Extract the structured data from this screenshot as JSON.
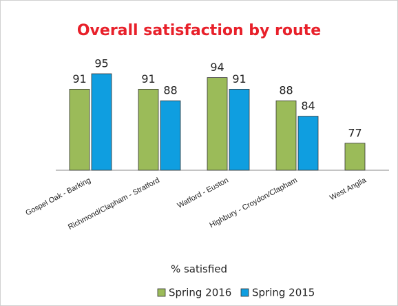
{
  "chart_data": {
    "type": "bar",
    "title": "Overall satisfaction by route",
    "x_label": "% satisfied",
    "categories": [
      "Gospel Oak - Barking",
      "Richmond/Clapham - Stratford",
      "Watford - Euston",
      "Highbury - Croydon/Clapham",
      "West Anglia"
    ],
    "series": [
      {
        "name": "Spring 2016",
        "color": "#9bbb59",
        "values": [
          91,
          91,
          94,
          88,
          77
        ]
      },
      {
        "name": "Spring 2015",
        "color": "#0f9ee0",
        "values": [
          95,
          88,
          91,
          84,
          null
        ]
      }
    ],
    "ylim": [
      70,
      100
    ],
    "legend": "bottom"
  }
}
